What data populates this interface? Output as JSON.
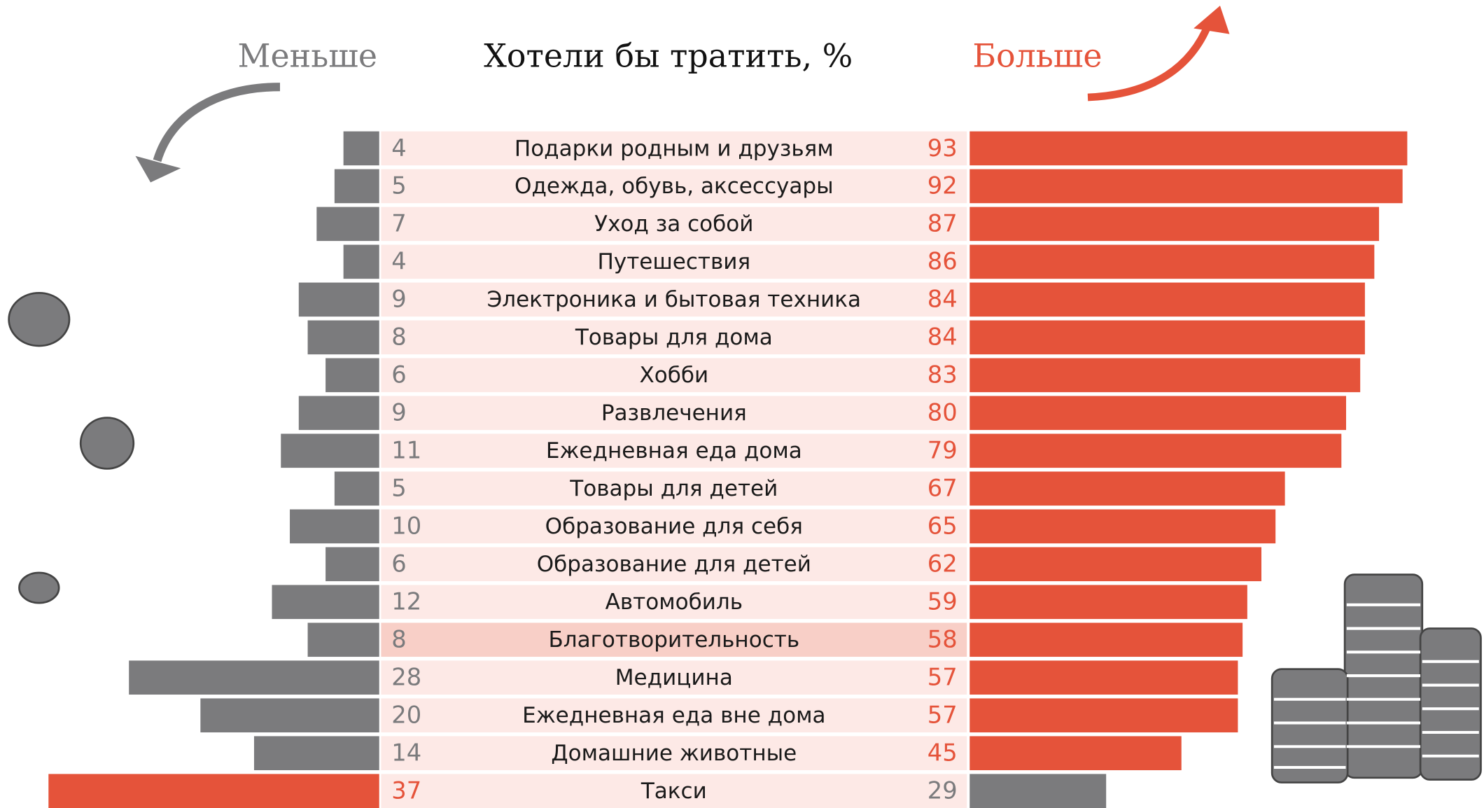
{
  "chart_data": {
    "type": "diverging_bar",
    "title": "Хотели бы тратить, %",
    "categories": [
      "Подарки родным и друзьям",
      "Одежда, обувь, аксессуары",
      "Уход за собой",
      "Путешествия",
      "Электроника и бытовая техника",
      "Товары для дома",
      "Хобби",
      "Развлечения",
      "Ежедневная еда дома",
      "Товары для детей",
      "Образование для себя",
      "Образование для детей",
      "Автомобиль",
      "Благотворительность",
      "Медицина",
      "Ежедневная еда вне дома",
      "Домашние животные",
      "Такси"
    ],
    "series": [
      {
        "name": "Меньше",
        "color": "#7b7b7d",
        "values": [
          4,
          5,
          7,
          4,
          9,
          8,
          6,
          9,
          11,
          5,
          10,
          6,
          12,
          8,
          28,
          20,
          14,
          37
        ],
        "colors": [
          "#7b7b7d",
          "#7b7b7d",
          "#7b7b7d",
          "#7b7b7d",
          "#7b7b7d",
          "#7b7b7d",
          "#7b7b7d",
          "#7b7b7d",
          "#7b7b7d",
          "#7b7b7d",
          "#7b7b7d",
          "#7b7b7d",
          "#7b7b7d",
          "#7b7b7d",
          "#7b7b7d",
          "#7b7b7d",
          "#7b7b7d",
          "#e5533a"
        ]
      },
      {
        "name": "Больше",
        "color": "#e5533a",
        "values": [
          93,
          92,
          87,
          86,
          84,
          84,
          83,
          80,
          79,
          67,
          65,
          62,
          59,
          58,
          57,
          57,
          45,
          29
        ],
        "colors": [
          "#e5533a",
          "#e5533a",
          "#e5533a",
          "#e5533a",
          "#e5533a",
          "#e5533a",
          "#e5533a",
          "#e5533a",
          "#e5533a",
          "#e5533a",
          "#e5533a",
          "#e5533a",
          "#e5533a",
          "#e5533a",
          "#e5533a",
          "#e5533a",
          "#e5533a",
          "#7b7b7d"
        ]
      }
    ],
    "highlight_index": 13
  }
}
